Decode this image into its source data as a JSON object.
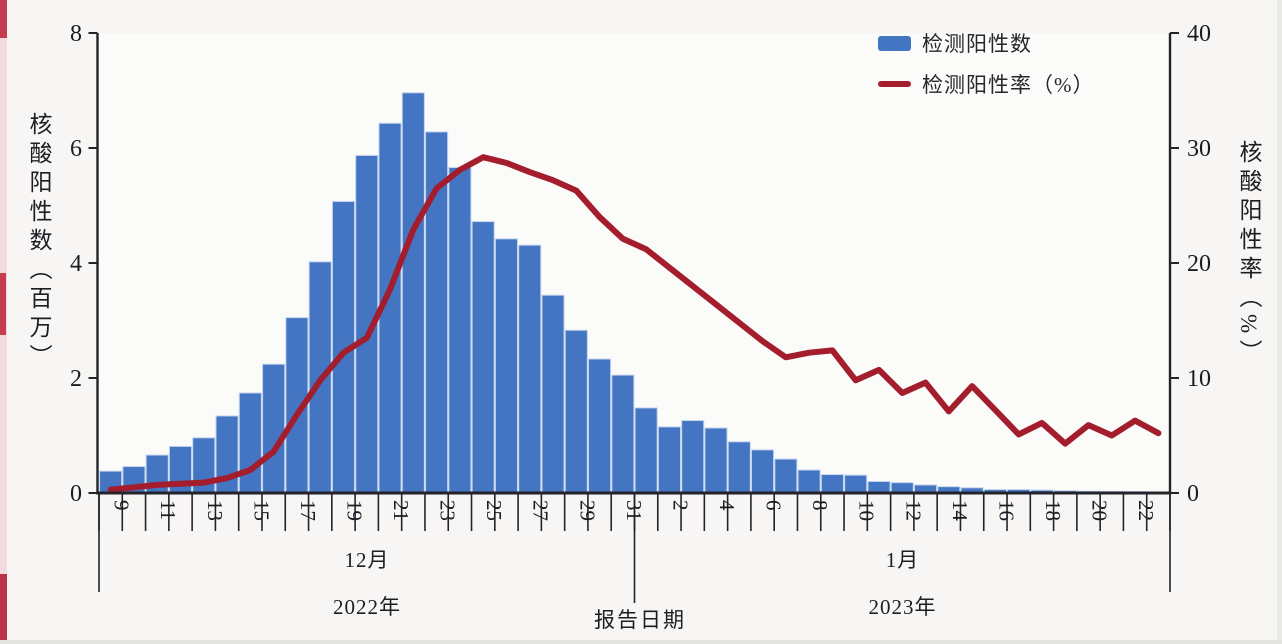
{
  "page": {
    "background": "#f7f6f4"
  },
  "chart_data": {
    "type": "bar",
    "subtype": "combo-bar-line-dual-axis",
    "title": "",
    "categories": [
      "12/9",
      "12/10",
      "12/11",
      "12/12",
      "12/13",
      "12/14",
      "12/15",
      "12/16",
      "12/17",
      "12/18",
      "12/19",
      "12/20",
      "12/21",
      "12/22",
      "12/23",
      "12/24",
      "12/25",
      "12/26",
      "12/27",
      "12/28",
      "12/29",
      "12/30",
      "12/31",
      "1/1",
      "1/2",
      "1/3",
      "1/4",
      "1/5",
      "1/6",
      "1/7",
      "1/8",
      "1/9",
      "1/10",
      "1/11",
      "1/12",
      "1/13",
      "1/14",
      "1/15",
      "1/16",
      "1/17",
      "1/18",
      "1/19",
      "1/20",
      "1/21",
      "1/22",
      "1/23"
    ],
    "series": [
      {
        "name": "检测阳性数",
        "type": "bar",
        "axis": "left",
        "color": "#4375c2",
        "values": [
          0.38,
          0.46,
          0.66,
          0.81,
          0.96,
          1.34,
          1.74,
          2.24,
          3.05,
          4.02,
          5.07,
          5.87,
          6.43,
          6.96,
          6.28,
          5.66,
          4.72,
          4.42,
          4.31,
          3.44,
          2.83,
          2.33,
          2.05,
          1.48,
          1.15,
          1.26,
          1.13,
          0.89,
          0.75,
          0.59,
          0.4,
          0.32,
          0.31,
          0.2,
          0.18,
          0.14,
          0.11,
          0.09,
          0.06,
          0.06,
          0.05,
          0.04,
          0.03,
          0.025,
          0.02,
          0.015
        ]
      },
      {
        "name": "检测阳性率（%）",
        "type": "line",
        "axis": "right",
        "color": "#a31d2c",
        "values": [
          0.3,
          0.5,
          0.7,
          0.8,
          0.9,
          1.3,
          2.0,
          3.6,
          6.8,
          9.8,
          12.2,
          13.5,
          17.7,
          22.9,
          26.5,
          28.1,
          29.2,
          28.7,
          27.9,
          27.2,
          26.3,
          24.0,
          22.1,
          21.2,
          19.6,
          18.0,
          16.4,
          14.8,
          13.2,
          11.8,
          12.2,
          12.4,
          9.8,
          10.7,
          8.7,
          9.6,
          7.1,
          9.3,
          7.2,
          5.1,
          6.1,
          4.3,
          5.9,
          5.0,
          6.3,
          5.2
        ]
      }
    ],
    "left_axis": {
      "label": "核酸阳性数（百万）",
      "min": 0,
      "max": 8,
      "ticks": [
        0,
        2,
        4,
        6,
        8
      ]
    },
    "right_axis": {
      "label": "核酸阳性率（%）",
      "min": 0,
      "max": 40,
      "ticks": [
        0,
        10,
        20,
        30,
        40
      ]
    },
    "x_axis": {
      "title": "报告日期",
      "tick_labels": [
        "9",
        "11",
        "13",
        "15",
        "17",
        "19",
        "21",
        "23",
        "25",
        "27",
        "29",
        "31",
        "2",
        "4",
        "6",
        "8",
        "10",
        "12",
        "14",
        "16",
        "18",
        "20",
        "22"
      ],
      "sections": [
        {
          "month": "12月",
          "year": "2022年",
          "days": 23
        },
        {
          "month": "1月",
          "year": "2023年",
          "days": 23
        }
      ],
      "grid": false
    },
    "legend": {
      "position": "top-right",
      "items": [
        "检测阳性数",
        "检测阳性率（%）"
      ]
    },
    "layout_hints": {
      "grid": false,
      "bar_gap_color": "#c3d4ee",
      "axis_color": "#23232b"
    }
  }
}
